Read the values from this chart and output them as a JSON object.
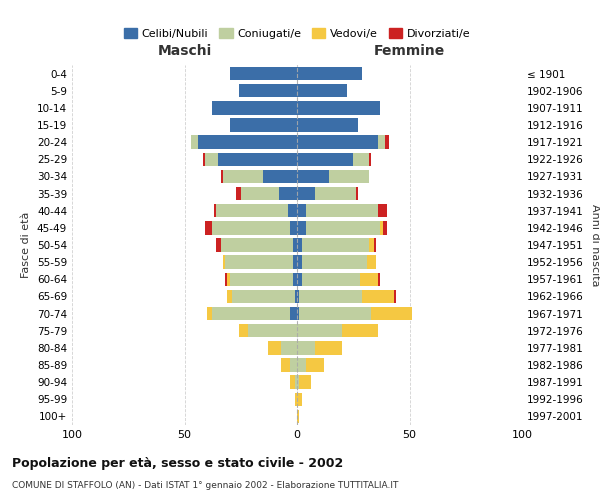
{
  "age_groups": [
    "0-4",
    "5-9",
    "10-14",
    "15-19",
    "20-24",
    "25-29",
    "30-34",
    "35-39",
    "40-44",
    "45-49",
    "50-54",
    "55-59",
    "60-64",
    "65-69",
    "70-74",
    "75-79",
    "80-84",
    "85-89",
    "90-94",
    "95-99",
    "100+"
  ],
  "birth_years": [
    "1997-2001",
    "1992-1996",
    "1987-1991",
    "1982-1986",
    "1977-1981",
    "1972-1976",
    "1967-1971",
    "1962-1966",
    "1957-1961",
    "1952-1956",
    "1947-1951",
    "1942-1946",
    "1937-1941",
    "1932-1936",
    "1927-1931",
    "1922-1926",
    "1917-1921",
    "1912-1916",
    "1907-1911",
    "1902-1906",
    "≤ 1901"
  ],
  "male_celibi": [
    30,
    26,
    38,
    30,
    44,
    35,
    15,
    8,
    4,
    3,
    2,
    2,
    2,
    1,
    3,
    0,
    0,
    0,
    0,
    0,
    0
  ],
  "male_coniugati": [
    0,
    0,
    0,
    0,
    3,
    6,
    18,
    17,
    32,
    35,
    32,
    30,
    28,
    28,
    35,
    22,
    7,
    3,
    1,
    0,
    0
  ],
  "male_vedovi": [
    0,
    0,
    0,
    0,
    0,
    0,
    0,
    0,
    0,
    0,
    0,
    1,
    1,
    2,
    2,
    4,
    6,
    4,
    2,
    1,
    0
  ],
  "male_divorziati": [
    0,
    0,
    0,
    0,
    0,
    1,
    1,
    2,
    1,
    3,
    2,
    0,
    1,
    0,
    0,
    0,
    0,
    0,
    0,
    0,
    0
  ],
  "female_celibi": [
    29,
    22,
    37,
    27,
    36,
    25,
    14,
    8,
    4,
    4,
    2,
    2,
    2,
    1,
    1,
    0,
    0,
    0,
    0,
    0,
    0
  ],
  "female_coniugati": [
    0,
    0,
    0,
    0,
    3,
    7,
    18,
    18,
    32,
    33,
    30,
    29,
    26,
    28,
    32,
    20,
    8,
    4,
    1,
    0,
    0
  ],
  "female_vedovi": [
    0,
    0,
    0,
    0,
    0,
    0,
    0,
    0,
    0,
    1,
    2,
    4,
    8,
    14,
    18,
    16,
    12,
    8,
    5,
    2,
    1
  ],
  "female_divorziati": [
    0,
    0,
    0,
    0,
    2,
    1,
    0,
    1,
    4,
    2,
    1,
    0,
    1,
    1,
    0,
    0,
    0,
    0,
    0,
    0,
    0
  ],
  "colors": {
    "celibi": "#3B6EA8",
    "coniugati": "#BFCFA0",
    "vedovi": "#F5C842",
    "divorziati": "#CC2222"
  },
  "legend_labels": [
    "Celibi/Nubili",
    "Coniugati/e",
    "Vedovi/e",
    "Divorziati/e"
  ],
  "title_main": "Popolazione per età, sesso e stato civile - 2002",
  "title_sub": "COMUNE DI STAFFOLO (AN) - Dati ISTAT 1° gennaio 2002 - Elaborazione TUTTITALIA.IT",
  "xlabel_left": "Maschi",
  "xlabel_right": "Femmine",
  "ylabel_left": "Fasce di età",
  "ylabel_right": "Anni di nascita",
  "xlim": 100,
  "background_color": "#ffffff",
  "grid_color": "#cccccc"
}
